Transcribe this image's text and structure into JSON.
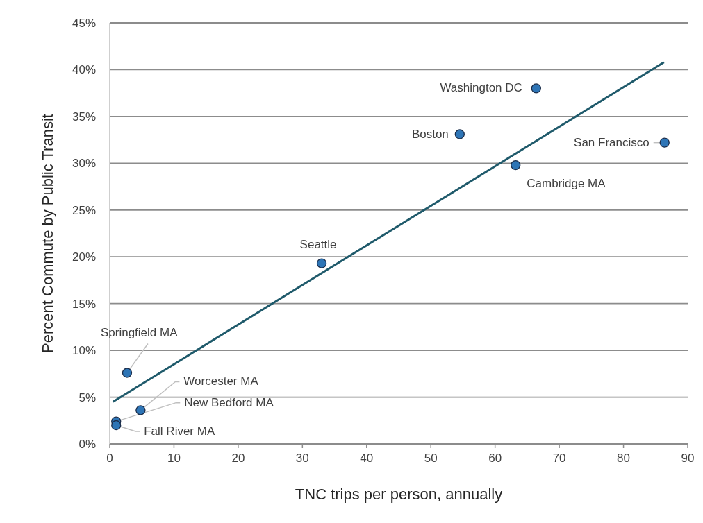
{
  "chart_data": {
    "type": "scatter",
    "xlabel": "TNC trips per person, annually",
    "ylabel": "Percent Commute by Public Transit",
    "xlim": [
      0,
      90
    ],
    "xticks": [
      0,
      10,
      20,
      30,
      40,
      50,
      60,
      70,
      80,
      90
    ],
    "ylim": [
      0,
      45
    ],
    "yticks": [
      {
        "value": 0,
        "label": "0%"
      },
      {
        "value": 5,
        "label": "5%"
      },
      {
        "value": 10,
        "label": "10%"
      },
      {
        "value": 15,
        "label": "15%"
      },
      {
        "value": 20,
        "label": "20%"
      },
      {
        "value": 25,
        "label": "25%"
      },
      {
        "value": 30,
        "label": "30%"
      },
      {
        "value": 35,
        "label": "35%"
      },
      {
        "value": 40,
        "label": "40%"
      },
      {
        "value": 45,
        "label": "45%"
      }
    ],
    "grid": "y",
    "marker": "circle",
    "series": [
      {
        "color": "#2e75b6",
        "x": [
          66.4,
          54.5,
          86.4,
          63.2,
          33.0,
          2.7,
          4.8,
          1.0,
          1.0
        ],
        "values": [
          38.0,
          33.1,
          32.2,
          29.8,
          19.3,
          7.6,
          3.6,
          2.4,
          2.0
        ]
      },
      {
        "type": "line",
        "marker": "none",
        "color": "#1f5a6b",
        "x": [
          0.5,
          86.3
        ],
        "values": [
          4.5,
          40.8
        ]
      }
    ],
    "annotations": [
      {
        "text": "Washington DC",
        "x": 66.4,
        "y": 38.0
      },
      {
        "text": "Boston",
        "x": 54.5,
        "y": 33.1
      },
      {
        "text": "San Francisco",
        "x": 86.4,
        "y": 32.2
      },
      {
        "text": "Cambridge MA",
        "x": 63.2,
        "y": 29.8
      },
      {
        "text": "Seattle",
        "x": 33.0,
        "y": 19.3
      },
      {
        "text": "Springfield MA",
        "x": 2.7,
        "y": 7.6
      },
      {
        "text": "Worcester MA",
        "x": 4.8,
        "y": 3.6
      },
      {
        "text": "New Bedford MA",
        "x": 1.0,
        "y": 2.4
      },
      {
        "text": "Fall River MA",
        "x": 1.0,
        "y": 2.0
      }
    ]
  }
}
